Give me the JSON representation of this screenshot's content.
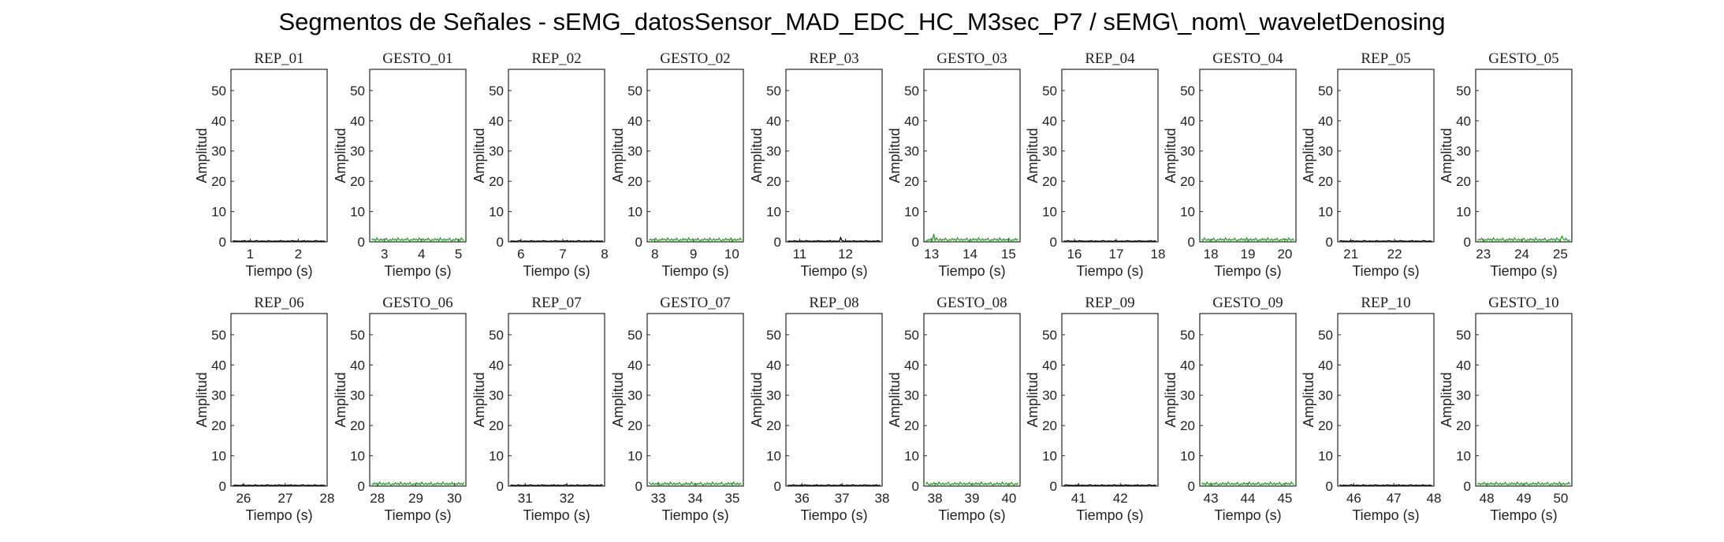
{
  "chart_data": {
    "type": "line",
    "title": "Segmentos de Señales - sEMG_datosSensor_MAD_EDC_HC_M3sec_P7 / sEMG\\_nom\\_waveletDenosing",
    "xlabel": "Tiempo (s)",
    "ylabel": "Amplitud",
    "ylim": [
      0,
      57
    ],
    "yticks": [
      0,
      10,
      20,
      30,
      40,
      50
    ],
    "grid": false,
    "colors": {
      "rep": "#000000",
      "gesto": "#2ca02c"
    },
    "panels": [
      {
        "title": "REP_01",
        "kind": "rep",
        "xlim": [
          0.6,
          2.6
        ],
        "xticks": [
          1,
          2
        ]
      },
      {
        "title": "GESTO_01",
        "kind": "gesto",
        "xlim": [
          2.6,
          5.2
        ],
        "xticks": [
          3,
          4,
          5
        ]
      },
      {
        "title": "REP_02",
        "kind": "rep",
        "xlim": [
          5.7,
          8.0
        ],
        "xticks": [
          6,
          7,
          8
        ]
      },
      {
        "title": "GESTO_02",
        "kind": "gesto",
        "xlim": [
          7.8,
          10.3
        ],
        "xticks": [
          8,
          9,
          10
        ]
      },
      {
        "title": "REP_03",
        "kind": "rep",
        "xlim": [
          10.7,
          12.8
        ],
        "xticks": [
          11,
          12
        ]
      },
      {
        "title": "GESTO_03",
        "kind": "gesto",
        "xlim": [
          12.8,
          15.3
        ],
        "xticks": [
          13,
          14,
          15
        ]
      },
      {
        "title": "REP_04",
        "kind": "rep",
        "xlim": [
          15.7,
          18.0
        ],
        "xticks": [
          16,
          17,
          18
        ]
      },
      {
        "title": "GESTO_04",
        "kind": "gesto",
        "xlim": [
          17.7,
          20.3
        ],
        "xticks": [
          18,
          19,
          20
        ]
      },
      {
        "title": "REP_05",
        "kind": "rep",
        "xlim": [
          20.7,
          22.9
        ],
        "xticks": [
          21,
          22
        ]
      },
      {
        "title": "GESTO_05",
        "kind": "gesto",
        "xlim": [
          22.8,
          25.3
        ],
        "xticks": [
          23,
          24,
          25
        ]
      },
      {
        "title": "REP_06",
        "kind": "rep",
        "xlim": [
          25.7,
          28.0
        ],
        "xticks": [
          26,
          27,
          28
        ]
      },
      {
        "title": "GESTO_06",
        "kind": "gesto",
        "xlim": [
          27.8,
          30.3
        ],
        "xticks": [
          28,
          29,
          30
        ]
      },
      {
        "title": "REP_07",
        "kind": "rep",
        "xlim": [
          30.6,
          32.9
        ],
        "xticks": [
          31,
          32
        ]
      },
      {
        "title": "GESTO_07",
        "kind": "gesto",
        "xlim": [
          32.7,
          35.3
        ],
        "xticks": [
          33,
          34,
          35
        ]
      },
      {
        "title": "REP_08",
        "kind": "rep",
        "xlim": [
          35.6,
          38.0
        ],
        "xticks": [
          36,
          37,
          38
        ]
      },
      {
        "title": "GESTO_08",
        "kind": "gesto",
        "xlim": [
          37.7,
          40.3
        ],
        "xticks": [
          38,
          39,
          40
        ]
      },
      {
        "title": "REP_09",
        "kind": "rep",
        "xlim": [
          40.6,
          42.9
        ],
        "xticks": [
          41,
          42
        ]
      },
      {
        "title": "GESTO_09",
        "kind": "gesto",
        "xlim": [
          42.7,
          45.3
        ],
        "xticks": [
          43,
          44,
          45
        ]
      },
      {
        "title": "REP_10",
        "kind": "rep",
        "xlim": [
          45.6,
          48.0
        ],
        "xticks": [
          46,
          47,
          48
        ]
      },
      {
        "title": "GESTO_10",
        "kind": "gesto",
        "xlim": [
          47.7,
          50.3
        ],
        "xticks": [
          48,
          49,
          50
        ]
      }
    ]
  }
}
